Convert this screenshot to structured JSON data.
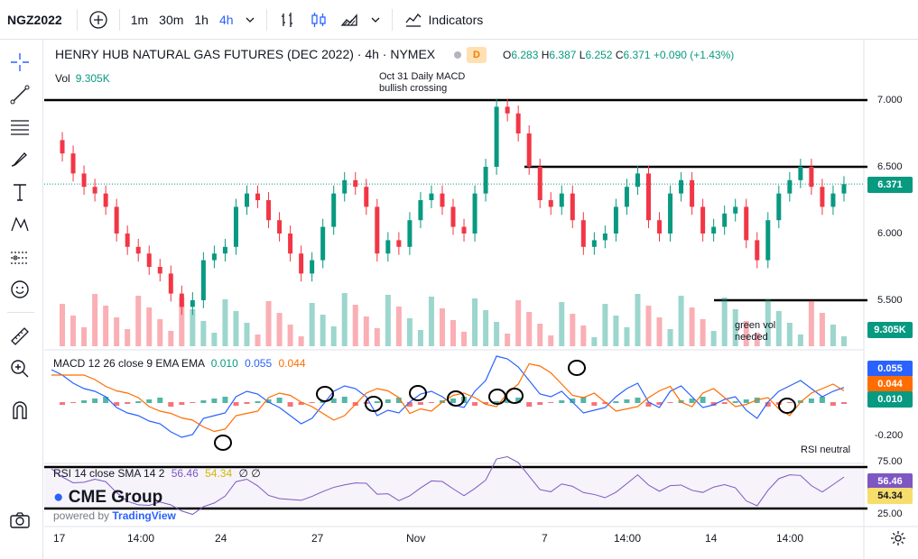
{
  "toolbar": {
    "symbol": "NGZ2022",
    "intervals": [
      "1m",
      "30m",
      "1h",
      "4h"
    ],
    "active_interval": "4h",
    "indicators_label": "Indicators"
  },
  "legend": {
    "title": "HENRY HUB NATURAL GAS FUTURES (DEC 2022) · 4h · NYMEX",
    "badge": "D",
    "o_label": "O",
    "o_value": "6.283",
    "h_label": "H",
    "h_value": "6.387",
    "l_label": "L",
    "l_value": "6.252",
    "c_label": "C",
    "c_value": "6.371",
    "change": "+0.090 (+1.43%)",
    "vol_label": "Vol",
    "vol_value": "9.305K"
  },
  "annotations": {
    "macd_cross_1": "Oct 31 Daily MACD",
    "macd_cross_2": "bullish crossing",
    "green_vol_1": "green vol",
    "green_vol_2": "needed",
    "rsi_note": "RSI neutral"
  },
  "macd_legend": {
    "label": "MACD 12 26 close 9 EMA EMA",
    "v1": "0.010",
    "v2": "0.055",
    "v3": "0.044"
  },
  "rsi_legend": {
    "label": "RSI 14 close SMA 14 2",
    "v1": "56.46",
    "v2": "54.34",
    "extra": "∅ ∅"
  },
  "price_axis": [
    "7.000",
    "6.500",
    "6.000",
    "5.500"
  ],
  "price_tags": {
    "last": "6.371",
    "vol": "9.305K",
    "macd_a": "0.055",
    "macd_b": "0.044",
    "macd_c": "0.010",
    "rsi_a": "56.46",
    "rsi_b": "54.34"
  },
  "macd_axis": "-0.200",
  "rsi_axis": [
    "75.00",
    "25.00"
  ],
  "time_axis": [
    "17",
    "14:00",
    "24",
    "27",
    "Nov",
    "7",
    "14:00",
    "14",
    "14:00"
  ],
  "watermark": "CME Group",
  "powered_by": "powered by",
  "powered_brand": "TradingView",
  "colors": {
    "up": "#089981",
    "down": "#f23645",
    "macd": "#2962ff",
    "signal": "#ff6d00",
    "rsi": "#7e57c2",
    "rsi_sma": "#f7dd6b"
  }
}
